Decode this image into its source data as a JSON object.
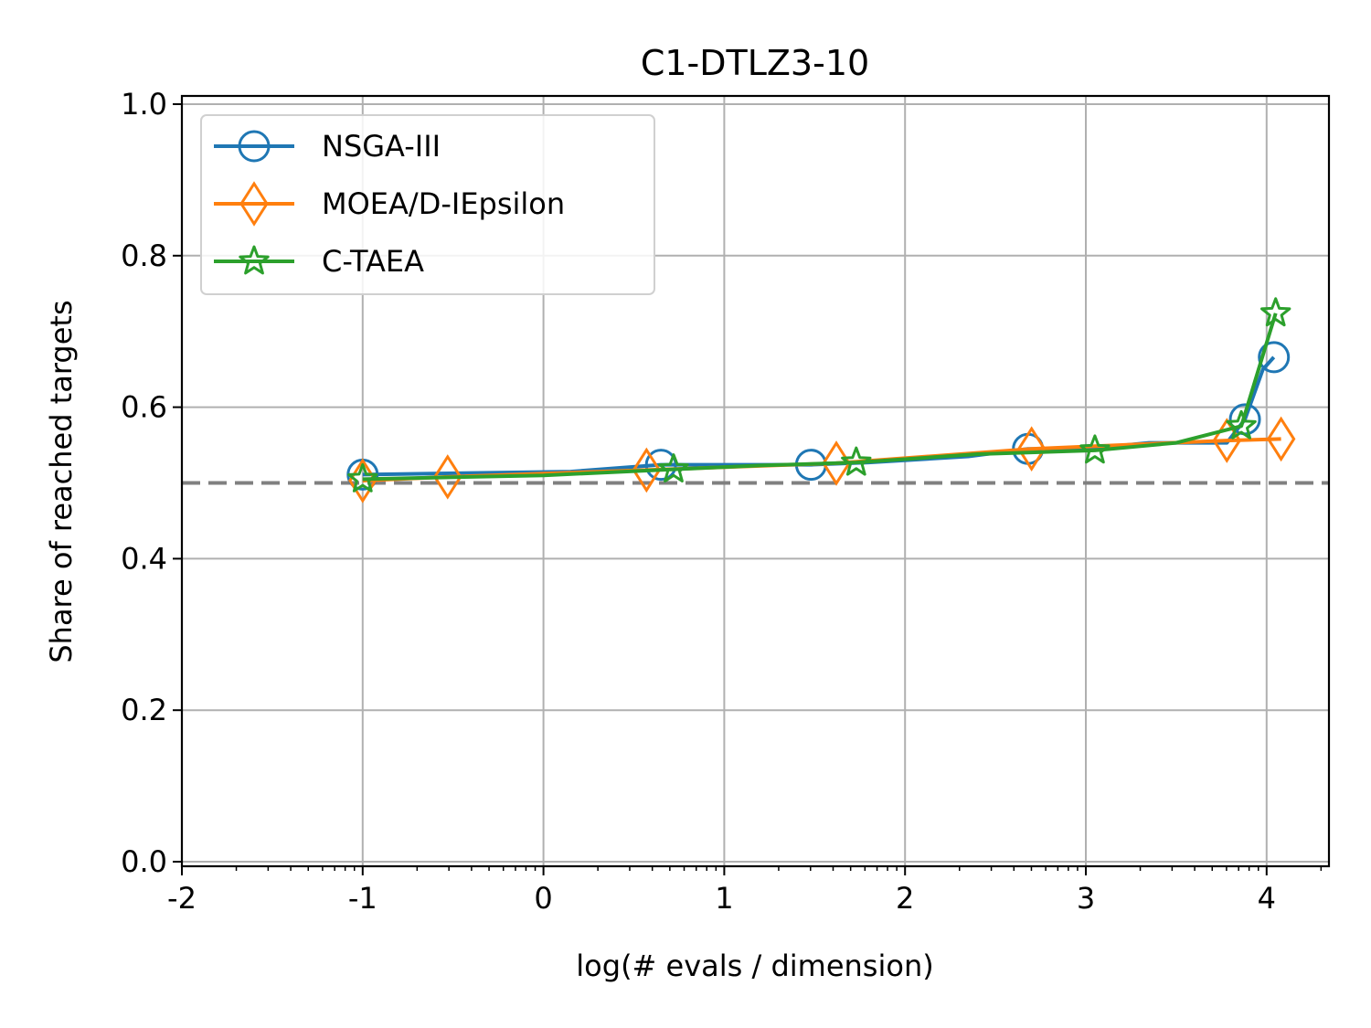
{
  "chart_data": {
    "type": "line",
    "title": "C1-DTLZ3-10",
    "xlabel": "log(# evals / dimension)",
    "ylabel": "Share of reached targets",
    "xlim": [
      -2,
      4.33
    ],
    "ylim": [
      -0.01,
      1.01
    ],
    "x_ticks": [
      -2,
      -1,
      0,
      1,
      2,
      3,
      4
    ],
    "x_tick_labels": [
      "-2",
      "-1",
      "0",
      "1",
      "2",
      "3",
      "4"
    ],
    "y_ticks": [
      0.0,
      0.2,
      0.4,
      0.6,
      0.8,
      1.0
    ],
    "y_tick_labels": [
      "0.0",
      "0.2",
      "0.4",
      "0.6",
      "0.8",
      "1.0"
    ],
    "grid": true,
    "legend_position": "top-left",
    "reference_line": {
      "y": 0.5,
      "style": "dashed",
      "color": "#808080"
    },
    "series": [
      {
        "name": "NSGA-III",
        "color": "#1f77b4",
        "marker": "circle",
        "x": [
          -1.0,
          0.15,
          0.65,
          1.0,
          1.48,
          1.8,
          2.35,
          2.68,
          3.0,
          3.35,
          3.78,
          3.88,
          3.98,
          4.04
        ],
        "y": [
          0.511,
          0.515,
          0.524,
          0.524,
          0.524,
          0.527,
          0.535,
          0.545,
          0.545,
          0.553,
          0.553,
          0.584,
          0.65,
          0.666
        ],
        "marker_x": [
          -1.0,
          0.65,
          1.48,
          2.68,
          3.88,
          4.04
        ],
        "marker_y": [
          0.511,
          0.524,
          0.524,
          0.545,
          0.584,
          0.666
        ]
      },
      {
        "name": "MOEA/D-IEpsilon",
        "color": "#ff7f0e",
        "marker": "diamond",
        "x": [
          -1.0,
          -0.53,
          0.57,
          1.62,
          2.7,
          3.78,
          4.08
        ],
        "y": [
          0.503,
          0.508,
          0.517,
          0.526,
          0.545,
          0.556,
          0.558
        ],
        "marker_x": [
          -1.0,
          -0.53,
          0.57,
          1.62,
          2.7,
          3.78,
          4.08
        ],
        "marker_y": [
          0.503,
          0.508,
          0.517,
          0.526,
          0.545,
          0.556,
          0.558
        ]
      },
      {
        "name": "C-TAEA",
        "color": "#2ca02c",
        "marker": "star",
        "x": [
          -1.0,
          0.0,
          0.72,
          1.2,
          1.73,
          2.4,
          3.05,
          3.5,
          3.86,
          4.05
        ],
        "y": [
          0.505,
          0.51,
          0.518,
          0.523,
          0.527,
          0.538,
          0.543,
          0.553,
          0.575,
          0.724
        ],
        "marker_x": [
          -1.0,
          0.72,
          1.73,
          3.05,
          3.86,
          4.05
        ],
        "marker_y": [
          0.505,
          0.518,
          0.527,
          0.543,
          0.575,
          0.724
        ]
      }
    ]
  }
}
